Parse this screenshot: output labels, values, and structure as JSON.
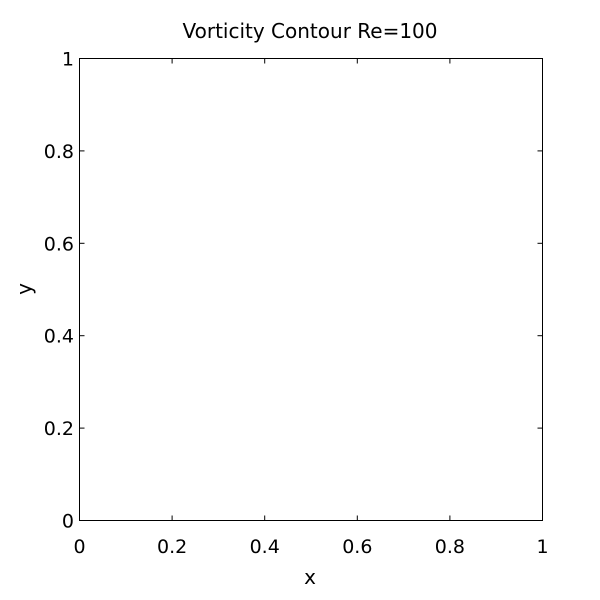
{
  "chart_data": {
    "type": "line",
    "title": "Vorticity Contour Re=100",
    "xlabel": "x",
    "ylabel": "y",
    "xlim": [
      0,
      1
    ],
    "ylim": [
      0,
      1
    ],
    "x_ticks": [
      0,
      0.2,
      0.4,
      0.6,
      0.8,
      1
    ],
    "x_tick_labels": [
      "0",
      "0.2",
      "0.4",
      "0.6",
      "0.8",
      "1"
    ],
    "y_ticks": [
      0,
      0.2,
      0.4,
      0.6,
      0.8,
      1
    ],
    "y_tick_labels": [
      "0",
      "0.2",
      "0.4",
      "0.6",
      "0.8",
      "1"
    ],
    "grid": false,
    "series": [],
    "colors": {
      "background": "#ffffff",
      "axes": "#000000",
      "text": "#000000"
    }
  }
}
